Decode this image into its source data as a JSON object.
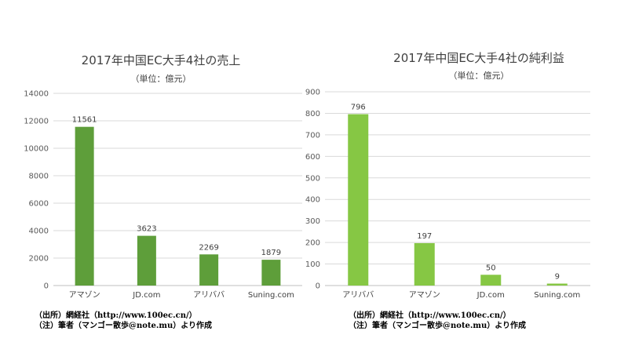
{
  "chart_data": [
    {
      "type": "bar",
      "title": "2017年中国EC大手4社の売上",
      "subtitle": "（単位：億元）",
      "categories": [
        "アマゾン",
        "JD.com",
        "アリババ",
        "Suning.com"
      ],
      "values": [
        11561,
        3623,
        2269,
        1879
      ],
      "ylim": [
        0,
        14000
      ],
      "yticks": [
        0,
        2000,
        4000,
        6000,
        8000,
        10000,
        12000,
        14000
      ],
      "grid": true,
      "color": "#5e9e3a",
      "notes": [
        "（出所）網経社（http://www.100ec.cn/）",
        "（注）筆者（マンゴー散歩@note.mu）より作成"
      ]
    },
    {
      "type": "bar",
      "title": "2017年中国EC大手4社の純利益",
      "subtitle": "（単位：億元）",
      "categories": [
        "アリババ",
        "アマゾン",
        "JD.com",
        "Suning.com"
      ],
      "values": [
        796,
        197,
        50,
        9
      ],
      "ylim": [
        0,
        900
      ],
      "yticks": [
        0,
        100,
        200,
        300,
        400,
        500,
        600,
        700,
        800,
        900
      ],
      "grid": true,
      "color": "#86c744",
      "notes": [
        "（出所）網経社（http://www.100ec.cn/）",
        "（注）筆者（マンゴー散歩@note.mu）より作成"
      ]
    }
  ]
}
